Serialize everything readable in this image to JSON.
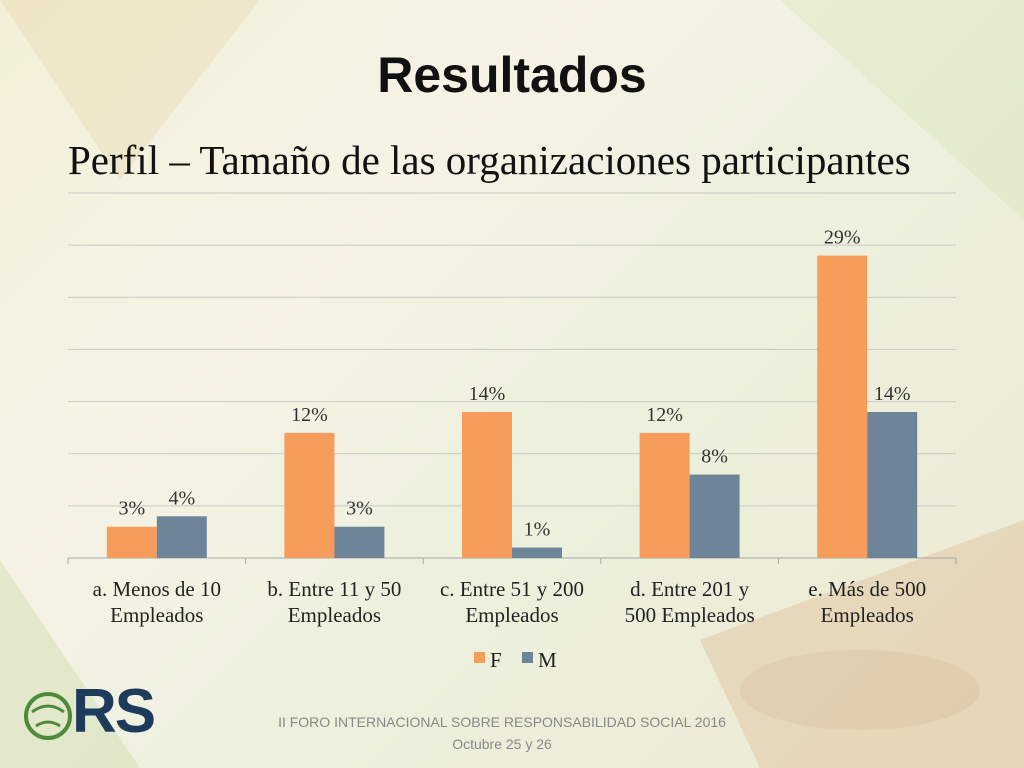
{
  "slide": {
    "title": "Resultados",
    "subtitle": "Perfil – Tamaño de las organizaciones participantes",
    "footer_line1": "II FORO INTERNACIONAL SOBRE RESPONSABILIDAD SOCIAL 2016",
    "footer_line2": "Octubre 25 y 26",
    "logo_text": "RS"
  },
  "chart_data": {
    "type": "bar",
    "categories": [
      [
        "a. Menos de 10",
        "Empleados"
      ],
      [
        "b. Entre 11 y 50",
        "Empleados"
      ],
      [
        "c. Entre 51 y 200",
        "Empleados"
      ],
      [
        "d. Entre 201 y",
        "500 Empleados"
      ],
      [
        "e. Más de 500",
        "Empleados"
      ]
    ],
    "series": [
      {
        "name": "F",
        "values": [
          3,
          12,
          14,
          12,
          29
        ],
        "labels": [
          "3%",
          "12%",
          "14%",
          "12%",
          "29%"
        ],
        "color": "#f79d5c"
      },
      {
        "name": "M",
        "values": [
          4,
          3,
          1,
          8,
          14
        ],
        "labels": [
          "4%",
          "3%",
          "1%",
          "8%",
          "14%"
        ],
        "color": "#6e8599"
      }
    ],
    "ylim": [
      0,
      35
    ],
    "grid": true,
    "legend": "bottom"
  }
}
